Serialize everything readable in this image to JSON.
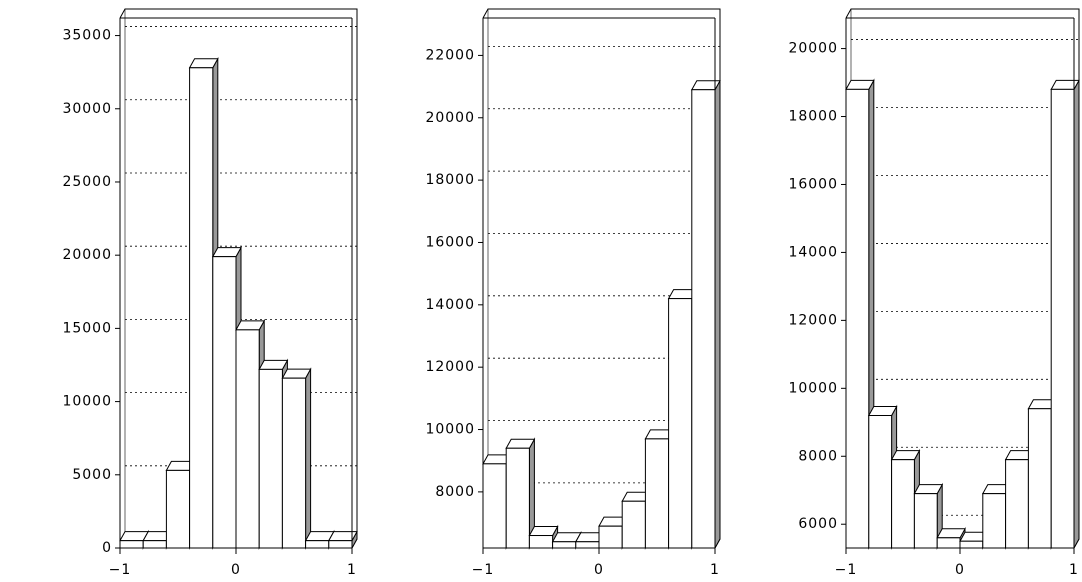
{
  "chart_data": [
    {
      "type": "histogram",
      "color": "#ffffff",
      "side_color": "#999999",
      "grid": true,
      "bins": [
        -1,
        -0.8,
        -0.6,
        -0.4,
        -0.2,
        0,
        0.2,
        0.4,
        0.6,
        0.8,
        1
      ],
      "values": [
        500,
        500,
        5300,
        32800,
        19900,
        14900,
        12200,
        11600,
        500,
        500
      ],
      "xlim": [
        -1,
        1
      ],
      "xticks": [
        {
          "value": -1,
          "label": "−1"
        },
        0,
        1
      ],
      "ylim": [
        0,
        36200
      ],
      "yticks": [
        0,
        5000,
        10000,
        15000,
        20000,
        25000,
        30000,
        35000
      ]
    },
    {
      "type": "histogram",
      "color": "#ffffff",
      "side_color": "#999999",
      "grid": true,
      "bins": [
        -1,
        -0.8,
        -0.6,
        -0.4,
        -0.2,
        0,
        0.2,
        0.4,
        0.6,
        0.8,
        1
      ],
      "values": [
        8900,
        9400,
        6600,
        6400,
        6400,
        6900,
        7700,
        9700,
        14200,
        20900
      ],
      "xlim": [
        -1,
        1
      ],
      "xticks": [
        {
          "value": -1,
          "label": "−1"
        },
        0,
        1
      ],
      "ylim": [
        6200,
        23200
      ],
      "yticks": [
        8000,
        10000,
        12000,
        14000,
        16000,
        18000,
        20000,
        22000
      ]
    },
    {
      "type": "histogram",
      "color": "#ffffff",
      "side_color": "#999999",
      "grid": true,
      "bins": [
        -1,
        -0.8,
        -0.6,
        -0.4,
        -0.2,
        0,
        0.2,
        0.4,
        0.6,
        0.8,
        1
      ],
      "values": [
        18800,
        9200,
        7900,
        6900,
        5600,
        5500,
        6900,
        7900,
        9400,
        18800
      ],
      "xlim": [
        -1,
        1
      ],
      "xticks": [
        {
          "value": -1,
          "label": "−1"
        },
        0,
        1
      ],
      "ylim": [
        5300,
        20900
      ],
      "yticks": [
        6000,
        8000,
        10000,
        12000,
        14000,
        16000,
        18000,
        20000
      ]
    }
  ]
}
